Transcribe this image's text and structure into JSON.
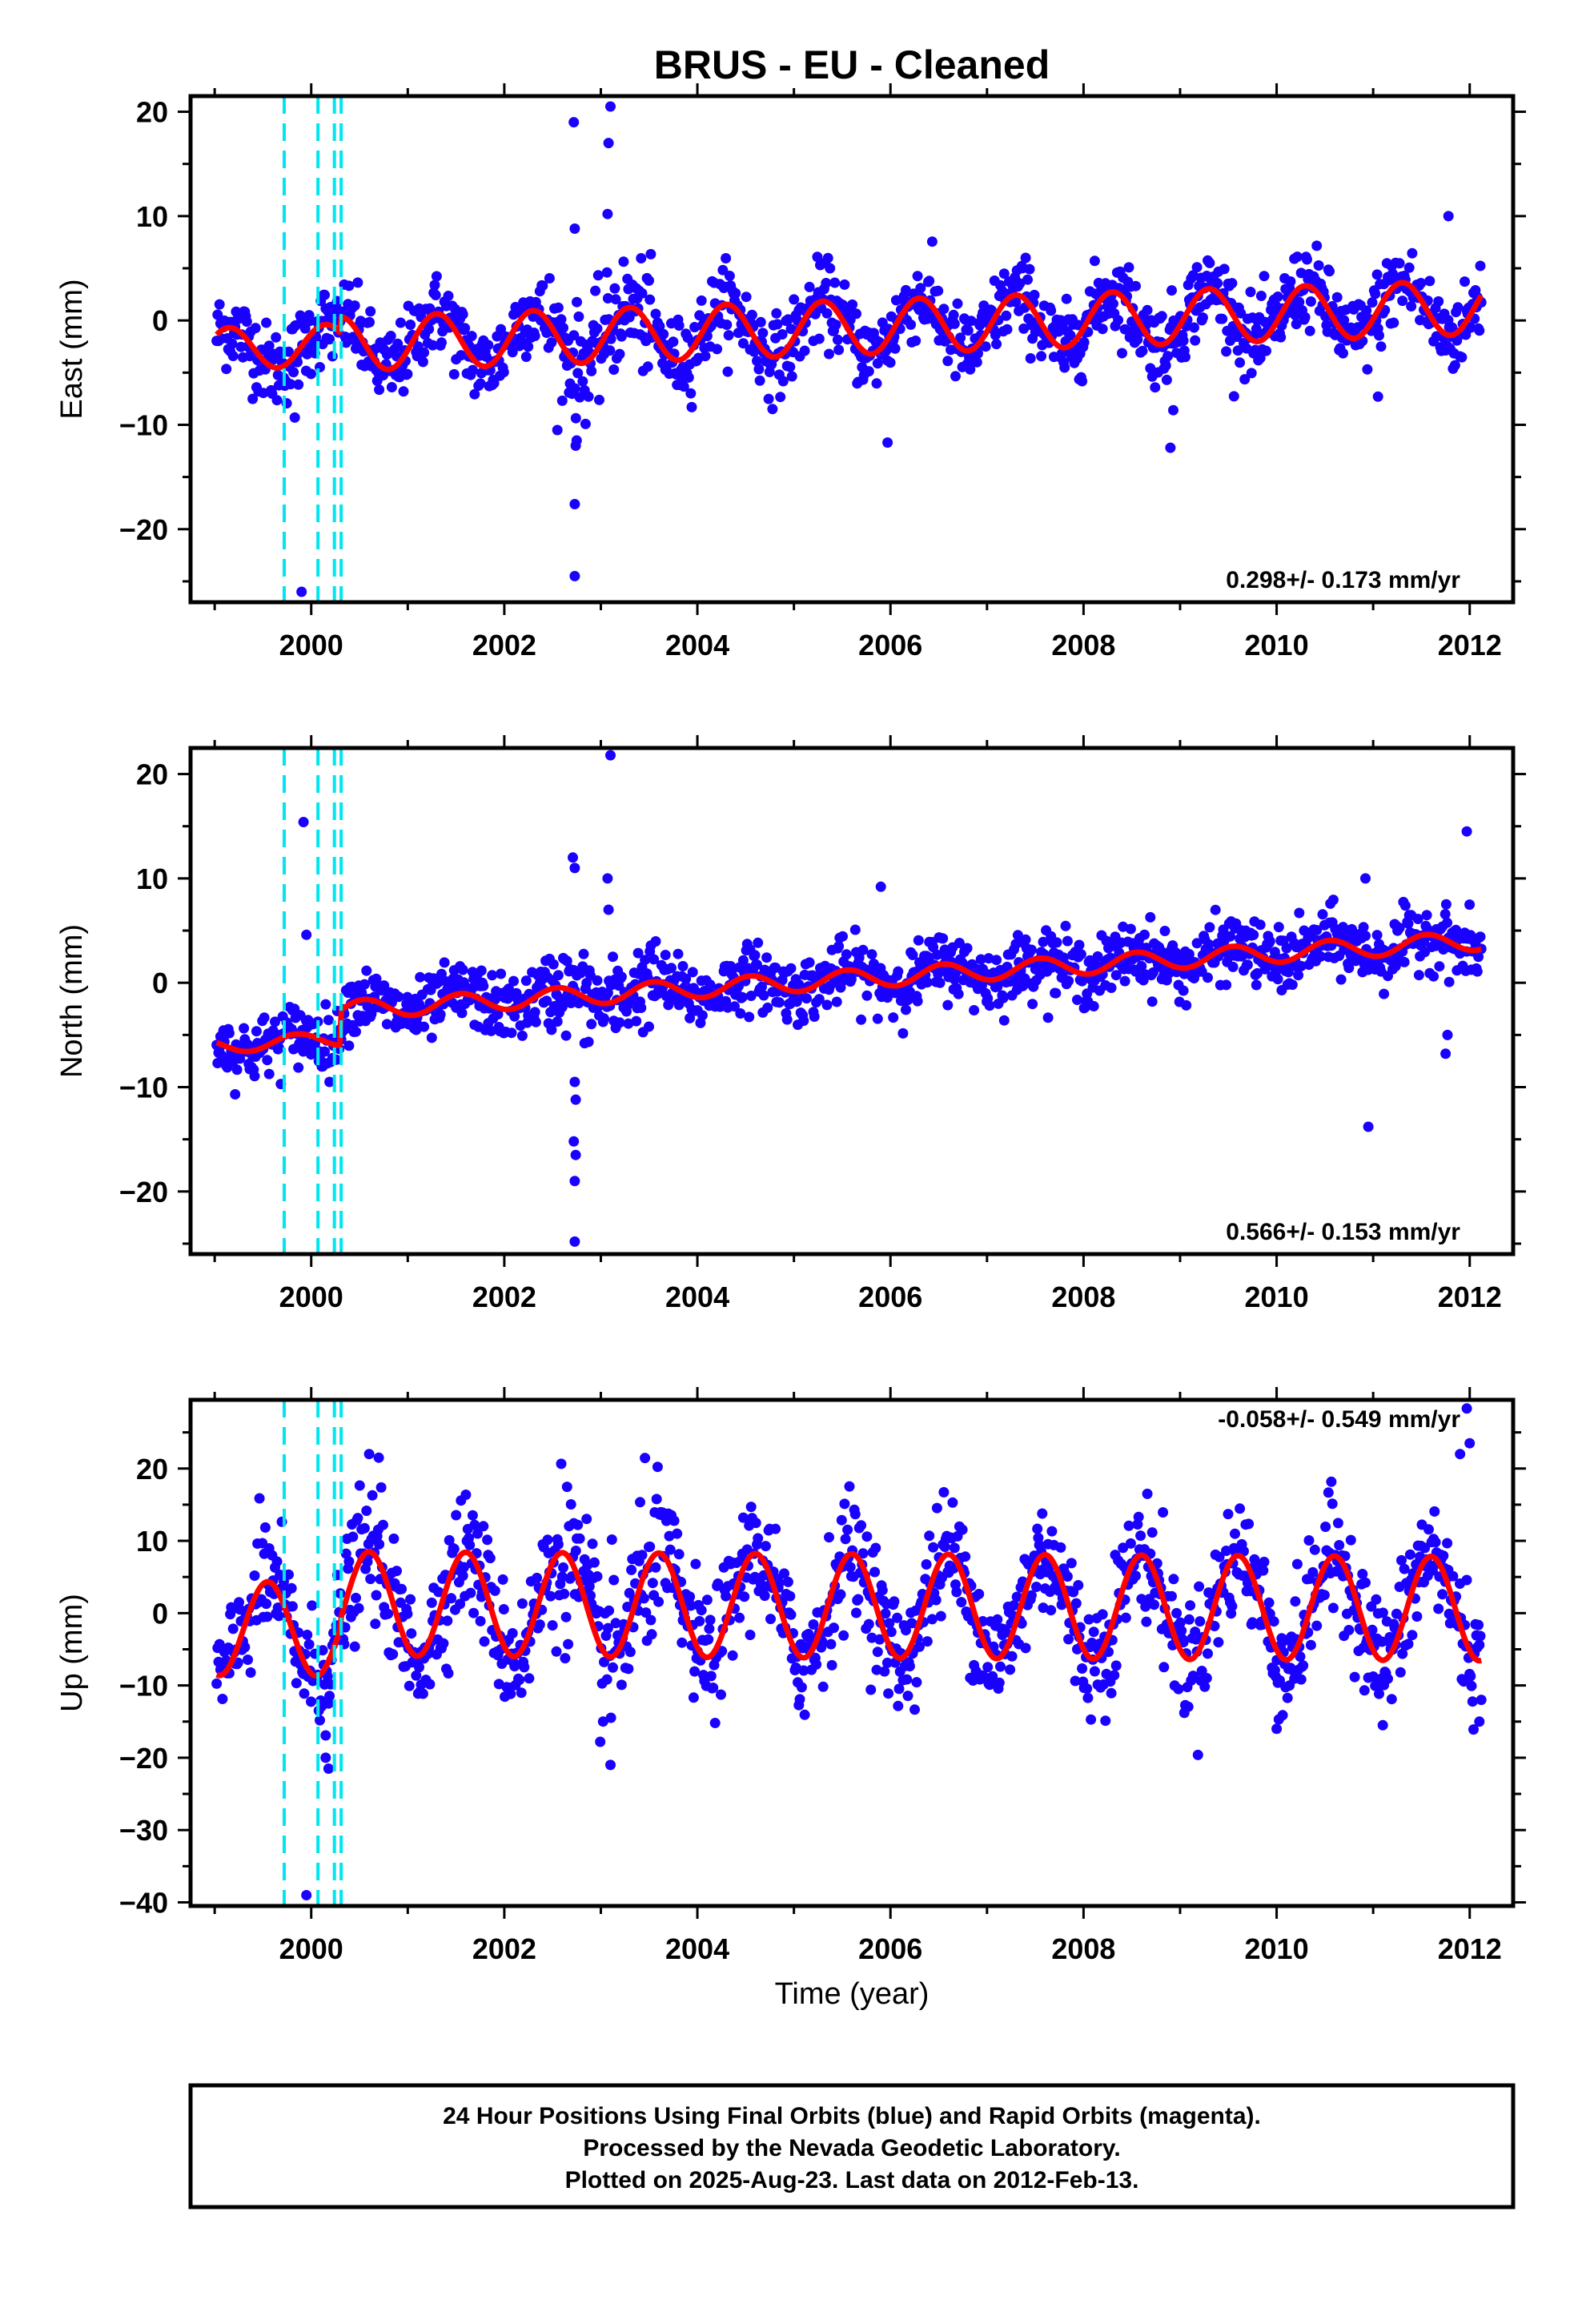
{
  "title": "BRUS  - EU - Cleaned",
  "xlabel": "Time (year)",
  "caption": [
    "24 Hour Positions Using Final Orbits (blue) and Rapid Orbits (magenta).",
    "Processed by the Nevada Geodetic Laboratory.",
    "Plotted on 2025-Aug-23. Last data on 2012-Feb-13."
  ],
  "colors": {
    "points": "#1a00ff",
    "fit": "#ff0000",
    "events": "#00e5ee",
    "frame": "#000000"
  },
  "chart_data": [
    {
      "type": "scatter",
      "id": "east",
      "ylabel": "East (mm)",
      "rate_text": "0.298+/- 0.173 mm/yr",
      "xlim": [
        1998.75,
        2012.45
      ],
      "ylim": [
        -27,
        21.5
      ],
      "xticks": [
        2000,
        2002,
        2004,
        2006,
        2008,
        2010,
        2012
      ],
      "yticks": [
        20,
        10,
        0,
        -10,
        -20
      ],
      "ytick_labels": [
        "20",
        "10",
        "0",
        "−10",
        "−20"
      ],
      "event_lines": [
        1999.72,
        2000.07,
        2000.24,
        2000.31
      ],
      "fit": {
        "offset": -0.7,
        "rate": 0.298,
        "t0": 2005.5,
        "amp": 2.6,
        "phase": 2000.05,
        "pre_offset": 0.0,
        "early": {
          "until": 2000.3,
          "offset": -0.8,
          "amp": 2.0,
          "phase": 1999.9
        }
      },
      "noise": 1.9,
      "outliers": [
        [
          2002.73,
          -24.5
        ],
        [
          2002.73,
          -17.6
        ],
        [
          2002.75,
          -11.5
        ],
        [
          2002.74,
          -12.0
        ],
        [
          2002.72,
          19.0
        ],
        [
          2002.73,
          8.8
        ],
        [
          2003.1,
          20.5
        ],
        [
          2003.08,
          17.0
        ],
        [
          2003.07,
          10.2
        ],
        [
          1999.9,
          -26.0
        ],
        [
          1999.83,
          -9.3
        ],
        [
          2005.97,
          -11.7
        ],
        [
          2008.9,
          -12.2
        ],
        [
          2008.93,
          -8.6
        ],
        [
          2011.05,
          -7.3
        ],
        [
          2011.78,
          10.0
        ]
      ]
    },
    {
      "type": "scatter",
      "id": "north",
      "ylabel": "North (mm)",
      "rate_text": "0.566+/- 0.153 mm/yr",
      "xlim": [
        1998.75,
        2012.45
      ],
      "ylim": [
        -26,
        22.5
      ],
      "xticks": [
        2000,
        2002,
        2004,
        2006,
        2008,
        2010,
        2012
      ],
      "yticks": [
        20,
        10,
        0,
        -10,
        -20
      ],
      "ytick_labels": [
        "20",
        "10",
        "0",
        "−10",
        "−20"
      ],
      "event_lines": [
        1999.72,
        2000.07,
        2000.24,
        2000.31
      ],
      "fit": {
        "offset": 0.3,
        "rate": 0.566,
        "t0": 2005.5,
        "amp": 0.9,
        "phase": 2000.3,
        "early": {
          "until": 2000.3,
          "offset": -2.4,
          "amp": 0.7,
          "phase": 1999.6
        }
      },
      "noise": 1.5,
      "outliers": [
        [
          2002.73,
          -24.8
        ],
        [
          2002.73,
          -19.0
        ],
        [
          2002.74,
          -16.5
        ],
        [
          2002.72,
          -15.2
        ],
        [
          2002.74,
          -11.2
        ],
        [
          2002.73,
          -9.5
        ],
        [
          2002.71,
          12.0
        ],
        [
          2002.73,
          11.0
        ],
        [
          2003.1,
          21.8
        ],
        [
          2003.07,
          10.0
        ],
        [
          2003.08,
          7.0
        ],
        [
          1999.92,
          15.4
        ],
        [
          1999.95,
          4.6
        ],
        [
          2005.9,
          9.2
        ],
        [
          2010.95,
          -13.8
        ],
        [
          2010.92,
          10.0
        ],
        [
          2011.97,
          14.5
        ],
        [
          2011.75,
          -6.8
        ],
        [
          2011.77,
          -5.0
        ]
      ]
    },
    {
      "type": "scatter",
      "id": "up",
      "ylabel": "Up (mm)",
      "rate_text": "-0.058+/- 0.549 mm/yr",
      "xlim": [
        1998.75,
        2012.45
      ],
      "ylim": [
        -40.5,
        29.5
      ],
      "xticks": [
        2000,
        2002,
        2004,
        2006,
        2008,
        2010,
        2012
      ],
      "yticks": [
        20,
        10,
        0,
        -10,
        -20,
        -30,
        -40
      ],
      "ytick_labels": [
        "20",
        "10",
        "0",
        "−10",
        "−20",
        "−30",
        "−40"
      ],
      "event_lines": [
        1999.72,
        2000.07,
        2000.24,
        2000.31
      ],
      "fit": {
        "offset": 1.0,
        "rate": -0.058,
        "t0": 2005.5,
        "amp": 7.2,
        "phase": 2000.35,
        "early": {
          "until": 2000.3,
          "offset": -2.5,
          "amp": 6.5,
          "phase": 1999.3
        }
      },
      "noise": 4.2,
      "outliers": [
        [
          1999.95,
          -39.0
        ],
        [
          2000.18,
          -21.5
        ],
        [
          2000.15,
          -20.0
        ],
        [
          2011.97,
          28.3
        ],
        [
          2012.0,
          23.5
        ],
        [
          2011.9,
          22.0
        ],
        [
          2000.6,
          22.0
        ],
        [
          2000.7,
          21.5
        ],
        [
          2003.1,
          -21.0
        ],
        [
          2010.0,
          -16.0
        ],
        [
          2011.1,
          -15.5
        ],
        [
          2012.1,
          -15.0
        ]
      ]
    }
  ]
}
